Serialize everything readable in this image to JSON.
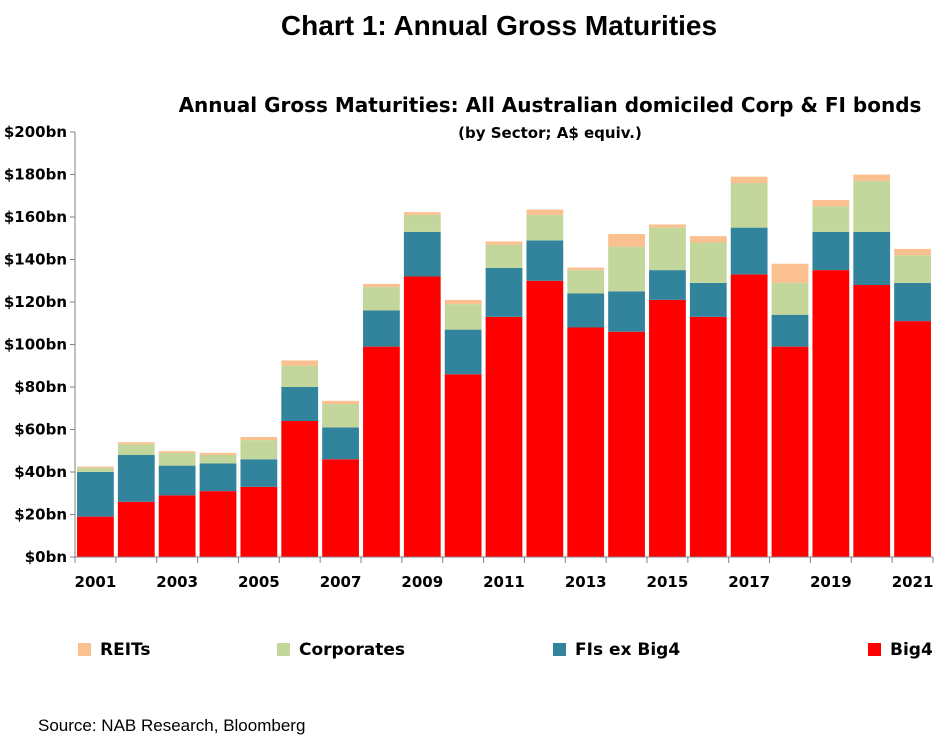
{
  "page": {
    "title": "Chart 1: Annual Gross Maturities",
    "source": "Source: NAB Research, Bloomberg"
  },
  "chart_data": {
    "type": "bar",
    "stacked": true,
    "title": "Annual Gross Maturities: All Australian domiciled Corp & FI bonds",
    "subtitle": "(by Sector; A$ equiv.)",
    "xlabel": "",
    "ylabel": "",
    "ylim": [
      0,
      200
    ],
    "y_ticks": [
      "$0bn",
      "$20bn",
      "$40bn",
      "$60bn",
      "$80bn",
      "$100bn",
      "$120bn",
      "$140bn",
      "$160bn",
      "$180bn",
      "$200bn"
    ],
    "x_tick_labels": [
      "2001",
      "2003",
      "2005",
      "2007",
      "2009",
      "2011",
      "2013",
      "2015",
      "2017",
      "2019",
      "2021"
    ],
    "categories": [
      "2001",
      "2002",
      "2003",
      "2004",
      "2005",
      "2006",
      "2007",
      "2008",
      "2009",
      "2010",
      "2011",
      "2012",
      "2013",
      "2014",
      "2015",
      "2016",
      "2017",
      "2018",
      "2019",
      "2020",
      "2021"
    ],
    "series": [
      {
        "name": "Big4",
        "color": "#ff0000",
        "values": [
          19,
          26,
          29,
          31,
          33,
          64,
          46,
          99,
          132,
          86,
          113,
          130,
          108,
          106,
          121,
          113,
          133,
          99,
          135,
          128,
          111
        ]
      },
      {
        "name": "FIs ex Big4",
        "color": "#31849b",
        "values": [
          21,
          22,
          14,
          13,
          13,
          16,
          15,
          17,
          21,
          21,
          23,
          19,
          16,
          19,
          14,
          16,
          22,
          15,
          18,
          25,
          18
        ]
      },
      {
        "name": "Corporates",
        "color": "#c3d69b",
        "values": [
          2,
          5,
          6,
          4,
          9,
          10,
          11,
          11,
          8,
          12,
          11,
          12,
          11,
          21,
          20,
          19,
          21,
          15,
          12,
          24,
          13
        ]
      },
      {
        "name": "REITs",
        "color": "#fac090",
        "values": [
          0.6,
          1,
          0.8,
          1,
          1.5,
          2.5,
          1.5,
          1.5,
          1.3,
          2,
          1.5,
          2.5,
          1.2,
          6,
          1.5,
          3,
          3,
          9,
          3,
          3,
          3
        ]
      }
    ],
    "legend_order": [
      "REITs",
      "Corporates",
      "FIs ex Big4",
      "Big4"
    ],
    "legend_position": "bottom",
    "grid": false
  }
}
